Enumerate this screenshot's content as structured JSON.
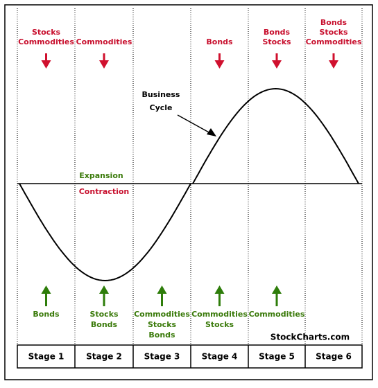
{
  "stages": [
    {
      "label": "Stage 1",
      "sell": [
        "Stocks",
        "Commodities"
      ],
      "buy": [
        "Bonds"
      ]
    },
    {
      "label": "Stage 2",
      "sell": [
        "Commodities"
      ],
      "buy": [
        "Stocks",
        "Bonds"
      ]
    },
    {
      "label": "Stage 3",
      "sell": [],
      "buy": [
        "Commodities",
        "Stocks",
        "Bonds"
      ]
    },
    {
      "label": "Stage 4",
      "sell": [
        "Bonds"
      ],
      "buy": [
        "Commodities",
        "Stocks"
      ]
    },
    {
      "label": "Stage 5",
      "sell": [
        "Bonds",
        "Stocks"
      ],
      "buy": [
        "Commodities"
      ]
    },
    {
      "label": "Stage 6",
      "sell": [
        "Bonds",
        "Stocks",
        "Commodities"
      ],
      "buy": []
    }
  ],
  "annotations": {
    "cycle": [
      "Business",
      "Cycle"
    ],
    "expansion": "Expansion",
    "contraction": "Contraction",
    "source": "StockCharts.com"
  }
}
